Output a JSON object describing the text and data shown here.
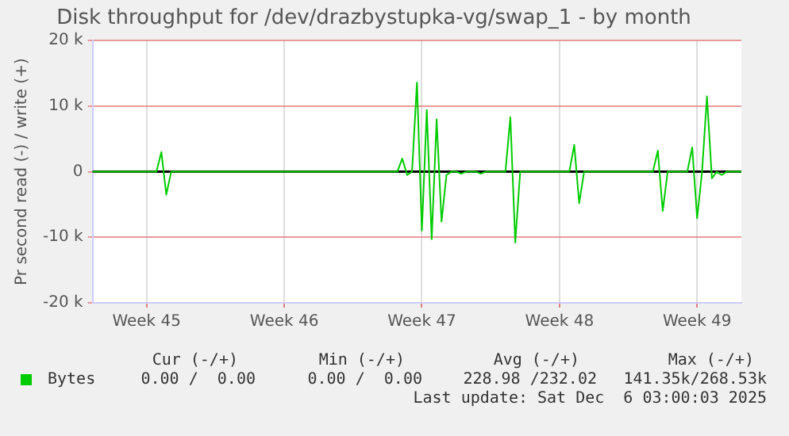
{
  "chart_data": {
    "type": "line",
    "title": "Disk throughput for /dev/drazbystupka-vg/swap_1 - by month",
    "ylabel": "Pr second read (-) / write (+)",
    "categories": [
      null,
      null,
      null,
      null,
      null,
      null,
      null,
      null,
      null,
      null,
      null,
      "Week 45",
      null,
      null,
      null,
      null,
      null,
      null,
      null,
      null,
      null,
      null,
      null,
      null,
      null,
      null,
      null,
      null,
      null,
      null,
      null,
      null,
      null,
      null,
      null,
      null,
      null,
      null,
      null,
      "Week 46",
      null,
      null,
      null,
      null,
      null,
      null,
      null,
      null,
      null,
      null,
      null,
      null,
      null,
      null,
      null,
      null,
      null,
      null,
      null,
      null,
      null,
      null,
      null,
      null,
      null,
      null,
      null,
      "Week 47",
      null,
      null,
      null,
      null,
      null,
      null,
      null,
      null,
      null,
      null,
      null,
      null,
      null,
      null,
      null,
      null,
      null,
      null,
      null,
      null,
      null,
      null,
      null,
      null,
      null,
      null,
      null,
      "Week 48",
      null,
      null,
      null,
      null,
      null,
      null,
      null,
      null,
      null,
      null,
      null,
      null,
      null,
      null,
      null,
      null,
      null,
      null,
      null,
      null,
      null,
      null,
      null,
      null,
      null,
      null,
      null,
      "Week 49",
      null,
      null,
      null,
      null,
      null,
      null,
      null,
      null,
      null
    ],
    "ylim": [
      -20000,
      20000
    ],
    "yticks": [
      {
        "value": -20000,
        "label": "-20 k"
      },
      {
        "value": -10000,
        "label": "-10 k"
      },
      {
        "value": 0,
        "label": "0"
      },
      {
        "value": 10000,
        "label": "10 k"
      },
      {
        "value": 20000,
        "label": "20 k"
      }
    ],
    "grid": true,
    "legend": "bottom",
    "marker": "none",
    "line_style": "solid",
    "ref_lines": [
      {
        "axis": "y",
        "value": 0,
        "color": "#000000"
      }
    ],
    "series": [
      {
        "name": "Bytes",
        "color": "#00cc00",
        "values": [
          0,
          0,
          0,
          0,
          0,
          0,
          0,
          0,
          0,
          0,
          0,
          0,
          0,
          0,
          3000,
          -3500,
          0,
          0,
          0,
          0,
          0,
          0,
          0,
          0,
          0,
          0,
          0,
          0,
          0,
          0,
          0,
          0,
          0,
          0,
          0,
          0,
          0,
          0,
          0,
          0,
          0,
          0,
          0,
          0,
          0,
          0,
          0,
          0,
          0,
          0,
          0,
          0,
          0,
          0,
          0,
          0,
          0,
          0,
          0,
          0,
          0,
          0,
          0,
          2000,
          -500,
          0,
          13600,
          -9000,
          9400,
          -10300,
          8000,
          -7600,
          -500,
          0,
          0,
          -300,
          0,
          0,
          0,
          -300,
          0,
          0,
          0,
          0,
          0,
          8300,
          -10800,
          0,
          0,
          0,
          0,
          0,
          0,
          0,
          0,
          0,
          0,
          0,
          4100,
          -4800,
          0,
          0,
          0,
          0,
          0,
          0,
          0,
          0,
          0,
          0,
          0,
          0,
          0,
          0,
          0,
          3200,
          -6000,
          0,
          0,
          0,
          0,
          0,
          3700,
          -7100,
          0,
          11500,
          -1000,
          0,
          -500,
          0,
          0,
          0,
          0
        ]
      }
    ],
    "annotations": [
      "Cur (-/+)",
      "Min (-/+)",
      "Avg (-/+)",
      "Max (-/+)",
      "0.00 /  0.00",
      "0.00 /  0.00",
      "228.98 /232.02",
      "141.35k/268.53k",
      "Last update: Sat Dec  6 03:00:03 2025"
    ]
  }
}
